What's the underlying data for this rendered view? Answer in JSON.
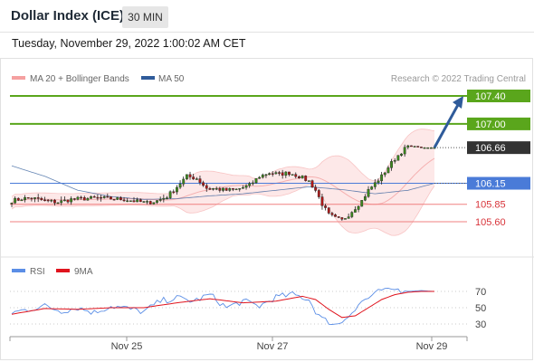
{
  "header": {
    "title": "Dollar Index (ICE)",
    "timeframe": "30 MIN",
    "datetime": "Tuesday, November 29, 2022 1:00:02 AM CET"
  },
  "legend": {
    "ma20": "MA 20 + Bollinger Bands",
    "ma50": "MA 50",
    "rsi": "RSI",
    "ma9": "9MA",
    "credit": "Research © 2022 Trading Central"
  },
  "colors": {
    "resistance": "#5aa61c",
    "pivot": "#4a7bd8",
    "support": "#f08080",
    "current": "#333333",
    "ma20": "#f5b0b0",
    "ma50": "#2f5b9a",
    "bollinger": "#fde8e8",
    "candle_up": "#3c8a1e",
    "candle_down": "#b01818",
    "rsi": "#5b8ee6",
    "rsi_ma": "#e0141e",
    "arrow": "#2f5b9a"
  },
  "chart_data": [
    {
      "type": "candlestick",
      "x_axis": {
        "tick_labels": [
          "Nov 25",
          "Nov 27",
          "Nov 29"
        ]
      },
      "ylim": [
        105.4,
        107.55
      ],
      "levels": [
        {
          "value": 107.4,
          "label": "107.40",
          "kind": "resistance"
        },
        {
          "value": 107.0,
          "label": "107.00",
          "kind": "resistance"
        },
        {
          "value": 106.66,
          "label": "106.66",
          "kind": "current"
        },
        {
          "value": 106.15,
          "label": "106.15",
          "kind": "pivot"
        },
        {
          "value": 105.85,
          "label": "105.85",
          "kind": "support"
        },
        {
          "value": 105.6,
          "label": "105.60",
          "kind": "support"
        }
      ],
      "anchors": [
        [
          0,
          105.9
        ],
        [
          3,
          105.93
        ],
        [
          6,
          105.94
        ],
        [
          10,
          105.9
        ],
        [
          14,
          105.88
        ],
        [
          18,
          105.92
        ],
        [
          22,
          105.93
        ],
        [
          26,
          105.94
        ],
        [
          30,
          105.93
        ],
        [
          34,
          105.92
        ],
        [
          38,
          105.89
        ],
        [
          41,
          105.87
        ],
        [
          44,
          105.9
        ],
        [
          47,
          105.96
        ],
        [
          50,
          106.1
        ],
        [
          53,
          106.25
        ],
        [
          56,
          106.22
        ],
        [
          59,
          106.08
        ],
        [
          62,
          106.07
        ],
        [
          65,
          106.05
        ],
        [
          68,
          106.06
        ],
        [
          72,
          106.12
        ],
        [
          75,
          106.25
        ],
        [
          78,
          106.3
        ],
        [
          81,
          106.28
        ],
        [
          84,
          106.3
        ],
        [
          87,
          106.25
        ],
        [
          90,
          106.18
        ],
        [
          92,
          106.05
        ],
        [
          94,
          105.85
        ],
        [
          96,
          105.7
        ],
        [
          98,
          105.65
        ],
        [
          100,
          105.62
        ],
        [
          102,
          105.7
        ],
        [
          104,
          105.8
        ],
        [
          106,
          105.9
        ],
        [
          108,
          106.05
        ],
        [
          110,
          106.15
        ],
        [
          112,
          106.25
        ],
        [
          114,
          106.38
        ],
        [
          116,
          106.5
        ],
        [
          118,
          106.6
        ],
        [
          120,
          106.68
        ],
        [
          122,
          106.68
        ],
        [
          124,
          106.66
        ],
        [
          126,
          106.66
        ],
        [
          128,
          106.66
        ]
      ],
      "ma50_anchors": [
        [
          0,
          106.4
        ],
        [
          10,
          106.25
        ],
        [
          20,
          106.05
        ],
        [
          30,
          105.96
        ],
        [
          40,
          105.92
        ],
        [
          50,
          105.93
        ],
        [
          60,
          105.97
        ],
        [
          70,
          106.0
        ],
        [
          80,
          106.05
        ],
        [
          90,
          106.1
        ],
        [
          100,
          106.06
        ],
        [
          110,
          106.0
        ],
        [
          120,
          106.05
        ],
        [
          128,
          106.15
        ]
      ],
      "forecast": {
        "from": 106.66,
        "to": 107.4
      }
    },
    {
      "type": "line",
      "title": "RSI",
      "y_ticks": [
        70,
        50,
        30
      ],
      "series": [
        {
          "name": "RSI",
          "anchors": [
            [
              0,
              44
            ],
            [
              5,
              48
            ],
            [
              10,
              52
            ],
            [
              15,
              46
            ],
            [
              20,
              50
            ],
            [
              25,
              44
            ],
            [
              30,
              52
            ],
            [
              35,
              49
            ],
            [
              40,
              45
            ],
            [
              45,
              58
            ],
            [
              50,
              62
            ],
            [
              55,
              58
            ],
            [
              60,
              66
            ],
            [
              65,
              50
            ],
            [
              70,
              58
            ],
            [
              75,
              52
            ],
            [
              80,
              63
            ],
            [
              85,
              66
            ],
            [
              88,
              63
            ],
            [
              90,
              60
            ],
            [
              92,
              46
            ],
            [
              94,
              36
            ],
            [
              96,
              33
            ],
            [
              98,
              29
            ],
            [
              100,
              33
            ],
            [
              102,
              42
            ],
            [
              104,
              47
            ],
            [
              106,
              58
            ],
            [
              108,
              62
            ],
            [
              110,
              66
            ],
            [
              112,
              72
            ],
            [
              114,
              70
            ],
            [
              116,
              73
            ],
            [
              118,
              71
            ],
            [
              120,
              70
            ],
            [
              124,
              71
            ],
            [
              128,
              70
            ]
          ]
        },
        {
          "name": "9MA",
          "anchors": [
            [
              0,
              42
            ],
            [
              10,
              49
            ],
            [
              20,
              48
            ],
            [
              30,
              50
            ],
            [
              40,
              50
            ],
            [
              50,
              56
            ],
            [
              60,
              61
            ],
            [
              70,
              56
            ],
            [
              80,
              58
            ],
            [
              88,
              64
            ],
            [
              92,
              60
            ],
            [
              96,
              48
            ],
            [
              100,
              38
            ],
            [
              104,
              40
            ],
            [
              108,
              50
            ],
            [
              112,
              60
            ],
            [
              116,
              66
            ],
            [
              120,
              69
            ],
            [
              124,
              70
            ],
            [
              128,
              70
            ]
          ]
        }
      ]
    }
  ]
}
